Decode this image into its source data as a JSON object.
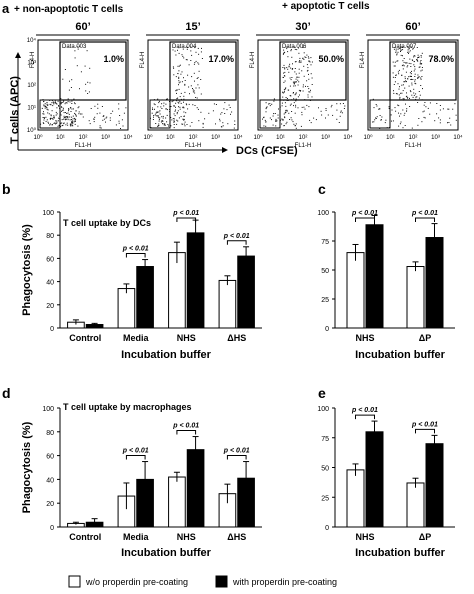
{
  "panel_a": {
    "letter": "a",
    "header_left": "+ non-apoptotic T cells",
    "header_right": "+ apoptotic T cells",
    "y_axis_label": "T cells (APC)",
    "x_axis_label": "DCs (CFSE)",
    "y_channel": "FL4-H",
    "x_channel": "FL1-H",
    "tick_labels": [
      "10⁰",
      "10¹",
      "10²",
      "10³",
      "10⁴"
    ],
    "plots": [
      {
        "time": "60’",
        "data_label": "Data.003",
        "percent": "1.0%",
        "density": 0.15
      },
      {
        "time": "15’",
        "data_label": "Data.004",
        "percent": "17.0%",
        "density": 0.45
      },
      {
        "time": "30’",
        "data_label": "Data.006",
        "percent": "50.0%",
        "density": 0.75
      },
      {
        "time": "60’",
        "data_label": "Data.007",
        "percent": "78.0%",
        "density": 0.9
      }
    ]
  },
  "legend": {
    "open_label": "w/o properdin pre-coating",
    "filled_label": "with properdin pre-coating"
  },
  "chart_data": [
    {
      "panel": "b",
      "type": "bar",
      "title": "T cell uptake by DCs",
      "ylabel": "Phagocytosis (%)",
      "xlabel": "Incubation buffer",
      "ylim": [
        0,
        100
      ],
      "yticks": [
        0,
        20,
        40,
        60,
        80,
        100
      ],
      "categories": [
        "Control",
        "Media",
        "NHS",
        "ΔHS"
      ],
      "series": [
        {
          "name": "w/o properdin pre-coating",
          "values": [
            5,
            34,
            65,
            41
          ],
          "errors": [
            2,
            4,
            9,
            4
          ]
        },
        {
          "name": "with properdin pre-coating",
          "values": [
            3,
            53,
            82,
            62
          ],
          "errors": [
            1,
            6,
            11,
            8
          ]
        }
      ],
      "significance": [
        {
          "category": "Media",
          "label": "p < 0.01"
        },
        {
          "category": "NHS",
          "label": "p < 0.01"
        },
        {
          "category": "ΔHS",
          "label": "p < 0.01"
        }
      ]
    },
    {
      "panel": "c",
      "type": "bar",
      "title": "",
      "ylabel": "",
      "xlabel": "Incubation buffer",
      "ylim": [
        0,
        100
      ],
      "yticks": [
        0,
        25,
        50,
        75,
        100
      ],
      "categories": [
        "NHS",
        "ΔP"
      ],
      "series": [
        {
          "name": "w/o properdin pre-coating",
          "values": [
            65,
            53
          ],
          "errors": [
            7,
            4
          ]
        },
        {
          "name": "with properdin pre-coating",
          "values": [
            89,
            78
          ],
          "errors": [
            8,
            12
          ]
        }
      ],
      "significance": [
        {
          "category": "NHS",
          "label": "p < 0.01"
        },
        {
          "category": "ΔP",
          "label": "p < 0.01"
        }
      ]
    },
    {
      "panel": "d",
      "type": "bar",
      "title": "T cell uptake by macrophages",
      "ylabel": "Phagocytosis (%)",
      "xlabel": "Incubation buffer",
      "ylim": [
        0,
        100
      ],
      "yticks": [
        0,
        20,
        40,
        60,
        80,
        100
      ],
      "categories": [
        "Control",
        "Media",
        "NHS",
        "ΔHS"
      ],
      "series": [
        {
          "name": "w/o properdin pre-coating",
          "values": [
            3,
            26,
            42,
            28
          ],
          "errors": [
            1,
            11,
            4,
            8
          ]
        },
        {
          "name": "with properdin pre-coating",
          "values": [
            4,
            40,
            65,
            41
          ],
          "errors": [
            3,
            15,
            11,
            14
          ]
        }
      ],
      "significance": [
        {
          "category": "Media",
          "label": "p < 0.01"
        },
        {
          "category": "NHS",
          "label": "p < 0.01"
        },
        {
          "category": "ΔHS",
          "label": "p < 0.01"
        }
      ]
    },
    {
      "panel": "e",
      "type": "bar",
      "title": "",
      "ylabel": "",
      "xlabel": "Incubation buffer",
      "ylim": [
        0,
        100
      ],
      "yticks": [
        0,
        25,
        50,
        75,
        100
      ],
      "categories": [
        "NHS",
        "ΔP"
      ],
      "series": [
        {
          "name": "w/o properdin pre-coating",
          "values": [
            48,
            37
          ],
          "errors": [
            5,
            4
          ]
        },
        {
          "name": "with properdin pre-coating",
          "values": [
            80,
            70
          ],
          "errors": [
            9,
            7
          ]
        }
      ],
      "significance": [
        {
          "category": "NHS",
          "label": "p < 0.01"
        },
        {
          "category": "ΔP",
          "label": "p < 0.01"
        }
      ]
    }
  ]
}
